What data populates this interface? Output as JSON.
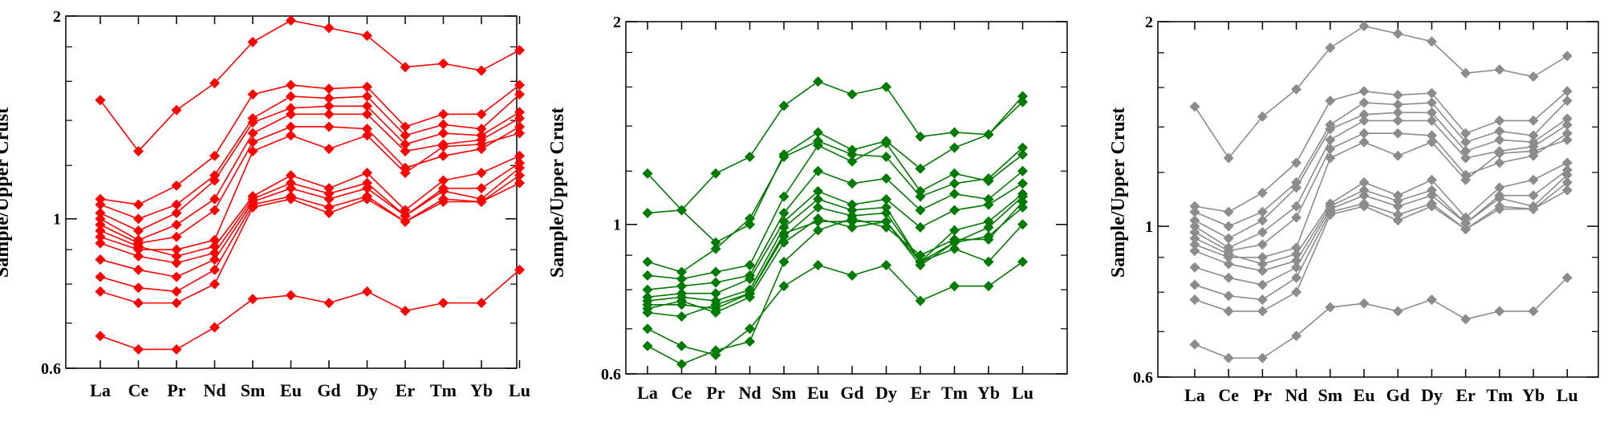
{
  "chart_data": [
    {
      "type": "line",
      "ylabel": "Sample/Upper Crust",
      "yscale": "log",
      "ylim": [
        0.6,
        2
      ],
      "yticks": [
        0.6,
        1,
        2
      ],
      "color": "#ff0000",
      "categories": [
        "La",
        "Ce",
        "Pr",
        "Nd",
        "Sm",
        "Eu",
        "Gd",
        "Dy",
        "Er",
        "Tm",
        "Yb",
        "Lu"
      ],
      "series": [
        {
          "values": [
            1.5,
            1.26,
            1.45,
            1.59,
            1.83,
            1.97,
            1.92,
            1.87,
            1.68,
            1.7,
            1.66,
            1.78
          ]
        },
        {
          "values": [
            1.07,
            1.05,
            1.12,
            1.24,
            1.53,
            1.58,
            1.56,
            1.57,
            1.37,
            1.43,
            1.43,
            1.58
          ]
        },
        {
          "values": [
            1.05,
            1.0,
            1.05,
            1.16,
            1.41,
            1.52,
            1.51,
            1.52,
            1.33,
            1.38,
            1.36,
            1.53
          ]
        },
        {
          "values": [
            1.02,
            0.96,
            1.02,
            1.14,
            1.39,
            1.46,
            1.47,
            1.47,
            1.29,
            1.34,
            1.33,
            1.44
          ]
        },
        {
          "values": [
            1.0,
            0.93,
            0.98,
            1.07,
            1.34,
            1.43,
            1.43,
            1.43,
            1.26,
            1.29,
            1.31,
            1.41
          ]
        },
        {
          "values": [
            0.98,
            0.92,
            0.94,
            1.03,
            1.3,
            1.37,
            1.37,
            1.36,
            1.19,
            1.24,
            1.27,
            1.37
          ]
        },
        {
          "values": [
            0.94,
            0.9,
            0.9,
            0.93,
            1.26,
            1.33,
            1.27,
            1.33,
            1.17,
            1.28,
            1.29,
            1.34
          ]
        },
        {
          "values": [
            0.96,
            0.91,
            0.88,
            0.91,
            1.08,
            1.16,
            1.11,
            1.17,
            1.03,
            1.14,
            1.17,
            1.24
          ]
        },
        {
          "values": [
            0.92,
            0.88,
            0.86,
            0.89,
            1.07,
            1.13,
            1.09,
            1.13,
            1.01,
            1.11,
            1.11,
            1.21
          ]
        },
        {
          "values": [
            0.87,
            0.84,
            0.82,
            0.87,
            1.06,
            1.11,
            1.07,
            1.11,
            1.01,
            1.1,
            1.07,
            1.19
          ]
        },
        {
          "values": [
            0.82,
            0.79,
            0.78,
            0.84,
            1.05,
            1.08,
            1.04,
            1.08,
            0.99,
            1.07,
            1.06,
            1.16
          ]
        },
        {
          "values": [
            0.78,
            0.75,
            0.75,
            0.8,
            1.04,
            1.07,
            1.02,
            1.07,
            0.99,
            1.06,
            1.06,
            1.13
          ]
        },
        {
          "values": [
            0.67,
            0.64,
            0.64,
            0.69,
            0.76,
            0.77,
            0.75,
            0.78,
            0.73,
            0.75,
            0.75,
            0.84
          ]
        }
      ]
    },
    {
      "type": "line",
      "ylabel": "Sample/Upper Crust",
      "yscale": "log",
      "ylim": [
        0.6,
        2
      ],
      "yticks": [
        0.6,
        1,
        2
      ],
      "color": "#007a00",
      "categories": [
        "La",
        "Ce",
        "Pr",
        "Nd",
        "Sm",
        "Eu",
        "Gd",
        "Dy",
        "Er",
        "Tm",
        "Yb",
        "Lu"
      ],
      "series": [
        {
          "values": [
            1.04,
            1.05,
            1.19,
            1.26,
            1.5,
            1.63,
            1.56,
            1.6,
            1.35,
            1.37,
            1.36,
            1.55
          ]
        },
        {
          "values": [
            1.19,
            1.05,
            0.94,
            1.0,
            1.27,
            1.37,
            1.29,
            1.33,
            1.21,
            1.3,
            1.36,
            1.52
          ]
        },
        {
          "values": [
            0.88,
            0.85,
            0.92,
            1.02,
            1.26,
            1.33,
            1.27,
            1.26,
            1.1,
            1.15,
            1.17,
            1.3
          ]
        },
        {
          "values": [
            0.84,
            0.83,
            0.85,
            0.87,
            1.1,
            1.31,
            1.24,
            1.32,
            1.12,
            1.19,
            1.16,
            1.27
          ]
        },
        {
          "values": [
            0.8,
            0.81,
            0.82,
            0.84,
            1.04,
            1.2,
            1.15,
            1.17,
            1.05,
            1.11,
            1.09,
            1.2
          ]
        },
        {
          "values": [
            0.78,
            0.79,
            0.79,
            0.83,
            1.01,
            1.12,
            1.07,
            1.09,
            0.99,
            1.05,
            1.07,
            1.15
          ]
        },
        {
          "values": [
            0.77,
            0.78,
            0.77,
            0.8,
            0.99,
            1.09,
            1.05,
            1.06,
            0.88,
            0.98,
            1.01,
            1.11
          ]
        },
        {
          "values": [
            0.76,
            0.76,
            0.75,
            0.79,
            0.96,
            1.06,
            1.03,
            1.04,
            0.88,
            0.94,
            0.96,
            1.06
          ]
        },
        {
          "values": [
            0.75,
            0.77,
            0.74,
            0.78,
            0.94,
            1.02,
            0.99,
            1.01,
            0.88,
            0.92,
            0.88,
            1.0
          ]
        },
        {
          "values": [
            0.7,
            0.66,
            0.64,
            0.7,
            0.81,
            0.87,
            0.84,
            0.87,
            0.77,
            0.81,
            0.81,
            0.88
          ]
        },
        {
          "values": [
            0.66,
            0.62,
            0.65,
            0.67,
            0.88,
            0.98,
            1.02,
            0.99,
            0.9,
            0.95,
            0.95,
            1.08
          ]
        },
        {
          "values": [
            0.74,
            0.73,
            0.76,
            0.79,
            0.97,
            1.01,
            1.01,
            1.01,
            0.87,
            0.94,
            0.99,
            1.1
          ]
        }
      ]
    },
    {
      "type": "line",
      "ylabel": "Sample/Upper Crust",
      "yscale": "log",
      "ylim": [
        0.6,
        2
      ],
      "yticks": [
        0.6,
        1,
        2
      ],
      "color": "#8c8c8c",
      "categories": [
        "La",
        "Ce",
        "Pr",
        "Nd",
        "Sm",
        "Eu",
        "Gd",
        "Dy",
        "Er",
        "Tm",
        "Yb",
        "Lu"
      ],
      "series": [
        {
          "values": [
            1.5,
            1.26,
            1.45,
            1.59,
            1.83,
            1.97,
            1.92,
            1.87,
            1.68,
            1.7,
            1.66,
            1.78
          ]
        },
        {
          "values": [
            1.07,
            1.05,
            1.12,
            1.24,
            1.53,
            1.58,
            1.56,
            1.57,
            1.37,
            1.43,
            1.43,
            1.58
          ]
        },
        {
          "values": [
            1.05,
            1.0,
            1.05,
            1.16,
            1.41,
            1.52,
            1.51,
            1.52,
            1.33,
            1.38,
            1.36,
            1.53
          ]
        },
        {
          "values": [
            1.02,
            0.96,
            1.02,
            1.14,
            1.39,
            1.46,
            1.47,
            1.47,
            1.29,
            1.34,
            1.33,
            1.44
          ]
        },
        {
          "values": [
            1.0,
            0.93,
            0.98,
            1.07,
            1.34,
            1.43,
            1.43,
            1.43,
            1.26,
            1.29,
            1.31,
            1.41
          ]
        },
        {
          "values": [
            0.98,
            0.92,
            0.94,
            1.03,
            1.3,
            1.37,
            1.37,
            1.36,
            1.19,
            1.24,
            1.27,
            1.37
          ]
        },
        {
          "values": [
            0.94,
            0.9,
            0.9,
            0.93,
            1.26,
            1.33,
            1.27,
            1.33,
            1.17,
            1.28,
            1.29,
            1.34
          ]
        },
        {
          "values": [
            0.96,
            0.91,
            0.88,
            0.91,
            1.08,
            1.16,
            1.11,
            1.17,
            1.03,
            1.14,
            1.17,
            1.24
          ]
        },
        {
          "values": [
            0.92,
            0.88,
            0.86,
            0.89,
            1.07,
            1.13,
            1.09,
            1.13,
            1.01,
            1.11,
            1.11,
            1.21
          ]
        },
        {
          "values": [
            0.87,
            0.84,
            0.82,
            0.87,
            1.06,
            1.11,
            1.07,
            1.11,
            1.01,
            1.1,
            1.07,
            1.19
          ]
        },
        {
          "values": [
            0.82,
            0.79,
            0.78,
            0.84,
            1.05,
            1.08,
            1.04,
            1.08,
            0.99,
            1.07,
            1.06,
            1.16
          ]
        },
        {
          "values": [
            0.78,
            0.75,
            0.75,
            0.8,
            1.04,
            1.07,
            1.02,
            1.07,
            0.99,
            1.06,
            1.06,
            1.13
          ]
        },
        {
          "values": [
            0.67,
            0.64,
            0.64,
            0.69,
            0.76,
            0.77,
            0.75,
            0.78,
            0.73,
            0.75,
            0.75,
            0.84
          ]
        }
      ]
    }
  ]
}
